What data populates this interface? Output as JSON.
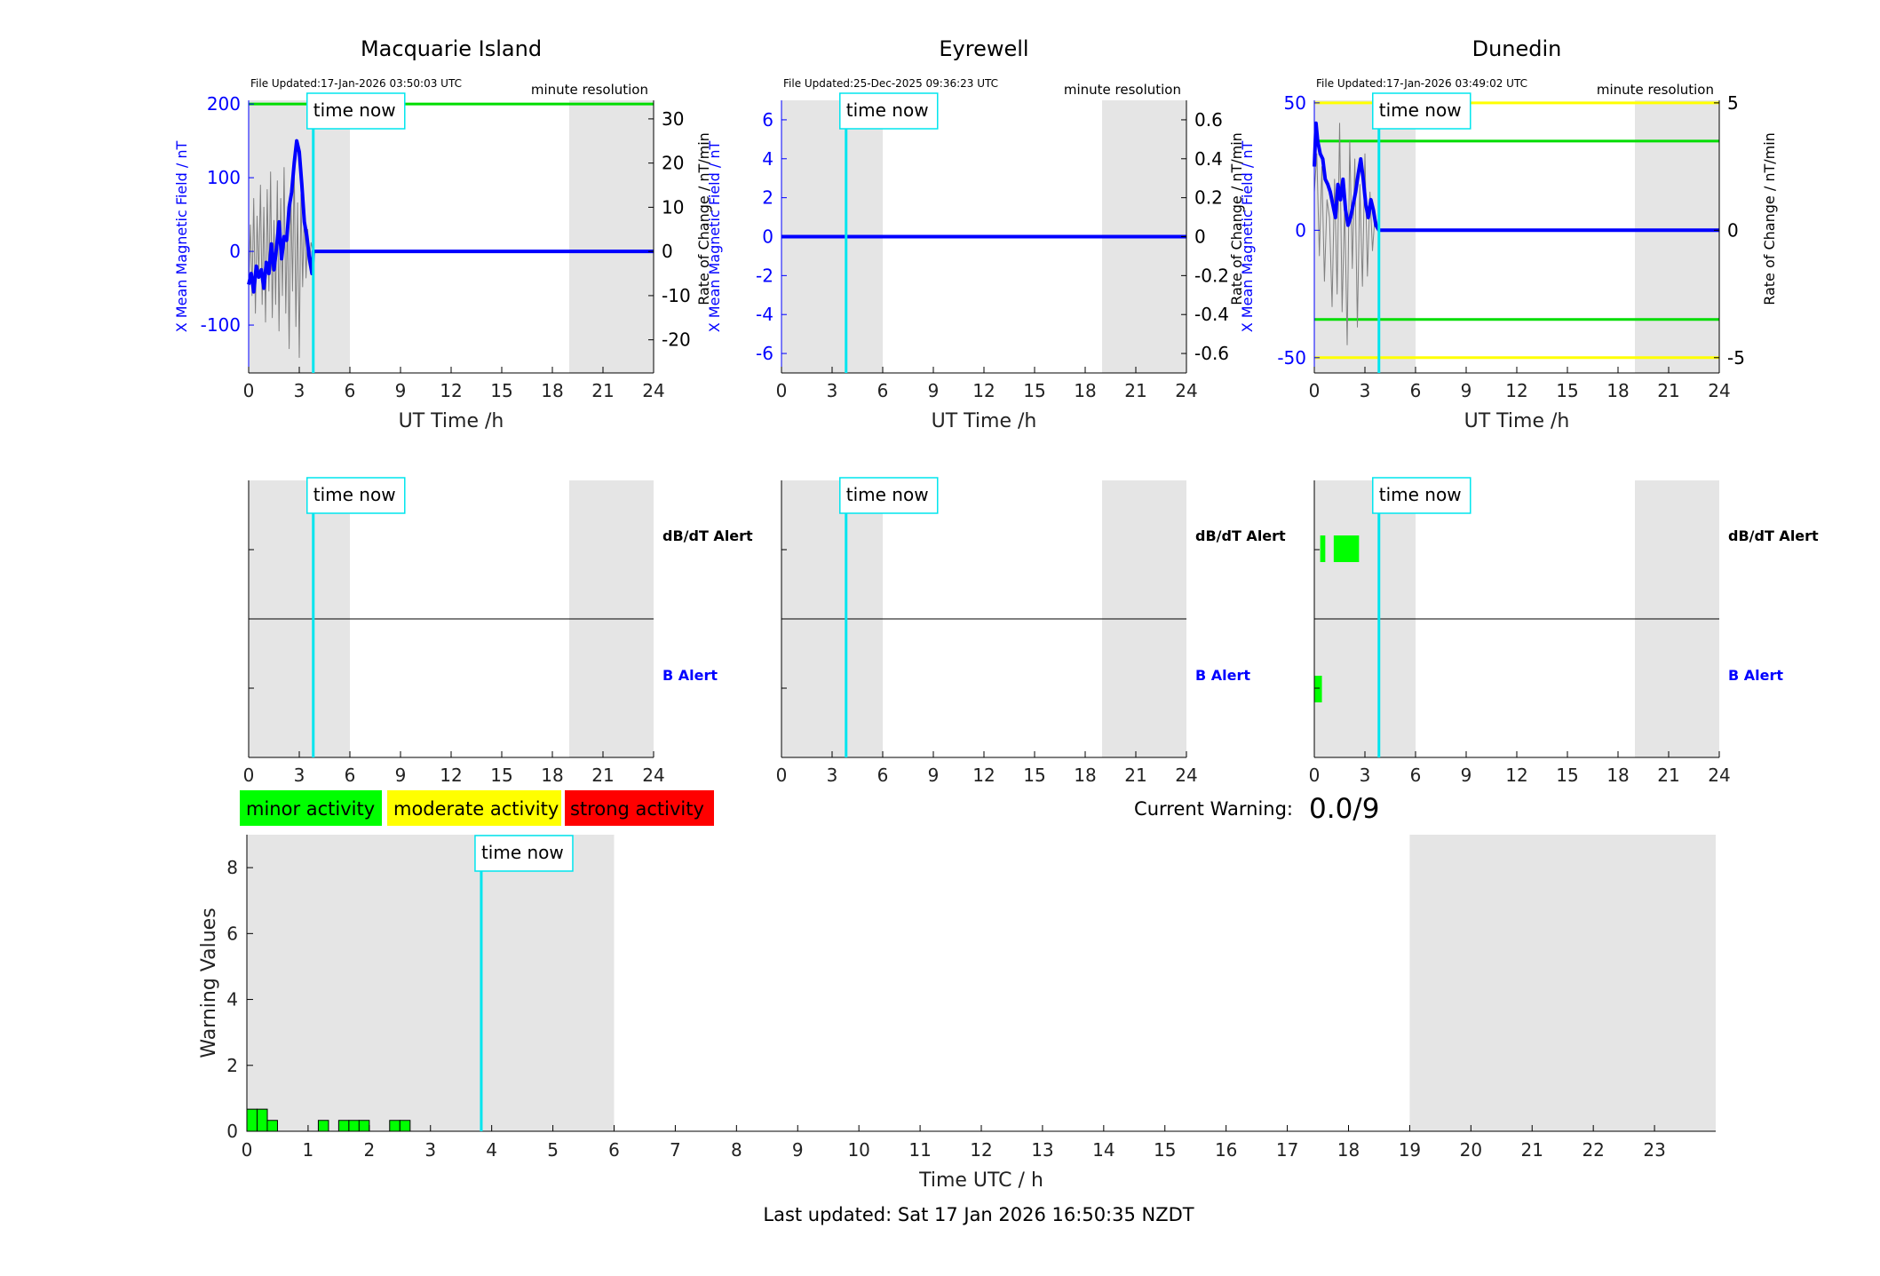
{
  "footer": {
    "last_updated": "Last updated: Sat 17 Jan 2026 16:50:35 NZDT"
  },
  "legend": {
    "minor": "minor activity",
    "moderate": "moderate activity",
    "strong": "strong activity"
  },
  "current_warning": {
    "label": "Current Warning:",
    "value": "0.0/9"
  },
  "common": {
    "time_now_label": "time now",
    "time_now_hours": 3.83,
    "resolution_label": "minute resolution",
    "x_label": "UT Time /h",
    "x_ticks": [
      0,
      3,
      6,
      9,
      12,
      15,
      18,
      21,
      24
    ],
    "y_left_label": "X Mean Magnetic Field / nT",
    "y_right_label": "Rate of Change / nT/min",
    "alert_dbdt_label": "dB/dT Alert",
    "alert_b_label": "B Alert",
    "night_spans_hours": [
      [
        0,
        6
      ],
      [
        19,
        24
      ]
    ]
  },
  "colors": {
    "field": "#0000ff",
    "rate": "#808080",
    "time_now": "#00e5ee",
    "minor": "#00ff00",
    "moderate": "#ffff00",
    "strong": "#ff0000",
    "night": "#e5e5e5"
  },
  "chart_data": [
    {
      "type": "line",
      "station": "Macquarie Island",
      "title": "Macquarie Island",
      "file_updated": "File Updated:17-Jan-2026 03:50:03 UTC",
      "xlim": [
        0,
        24
      ],
      "ylim_left": [
        -165,
        205
      ],
      "yticks_left": [
        -100,
        0,
        100,
        200
      ],
      "ylim_right": [
        -27.5,
        34.2
      ],
      "yticks_right": [
        -20,
        -10,
        0,
        10,
        20,
        30
      ],
      "thresholds_left": [
        {
          "value": 200,
          "color": "#00dd00"
        }
      ],
      "thresholds_right": [],
      "field_x": [
        0,
        0.15,
        0.3,
        0.45,
        0.6,
        0.75,
        0.9,
        1.05,
        1.2,
        1.35,
        1.5,
        1.65,
        1.8,
        1.95,
        2.1,
        2.25,
        2.4,
        2.55,
        2.7,
        2.85,
        3.0,
        3.15,
        3.3,
        3.45,
        3.6,
        3.75,
        3.83,
        24
      ],
      "field_y": [
        -45,
        -30,
        -55,
        -20,
        -35,
        -25,
        -50,
        -15,
        -30,
        10,
        -25,
        5,
        40,
        -10,
        20,
        15,
        60,
        80,
        120,
        150,
        135,
        90,
        40,
        20,
        -10,
        -30,
        0,
        0
      ],
      "rate_x": [
        0,
        0.1,
        0.2,
        0.3,
        0.4,
        0.5,
        0.6,
        0.7,
        0.8,
        0.9,
        1.0,
        1.1,
        1.2,
        1.3,
        1.4,
        1.5,
        1.6,
        1.7,
        1.8,
        1.9,
        2.0,
        2.1,
        2.2,
        2.3,
        2.4,
        2.5,
        2.6,
        2.7,
        2.8,
        2.9,
        3.0,
        3.1,
        3.2,
        3.3,
        3.4,
        3.5,
        3.6,
        3.7,
        3.83,
        24
      ],
      "rate_y": [
        -8,
        6,
        -10,
        12,
        -14,
        8,
        -6,
        15,
        -12,
        10,
        -16,
        14,
        -9,
        18,
        -15,
        7,
        -12,
        16,
        -18,
        12,
        -10,
        19,
        -14,
        8,
        -22,
        14,
        -9,
        20,
        -17,
        11,
        -24,
        13,
        -8,
        10,
        -6,
        5,
        -3,
        2,
        0,
        0
      ],
      "alerts_dbdt": [],
      "alerts_b": []
    },
    {
      "type": "line",
      "station": "Eyrewell",
      "title": "Eyrewell",
      "file_updated": "File Updated:25-Dec-2025 09:36:23 UTC",
      "xlim": [
        0,
        24
      ],
      "ylim_left": [
        -7,
        7
      ],
      "yticks_left": [
        -6,
        -4,
        -2,
        0,
        2,
        4,
        6
      ],
      "ylim_right": [
        -0.7,
        0.7
      ],
      "yticks_right": [
        -0.6,
        -0.4,
        -0.2,
        0,
        0.2,
        0.4,
        0.6
      ],
      "thresholds_left": [],
      "thresholds_right": [],
      "field_x": [
        0,
        24
      ],
      "field_y": [
        0,
        0
      ],
      "rate_x": [
        0,
        24
      ],
      "rate_y": [
        0,
        0
      ],
      "alerts_dbdt": [],
      "alerts_b": []
    },
    {
      "type": "line",
      "station": "Dunedin",
      "title": "Dunedin",
      "file_updated": "File Updated:17-Jan-2026 03:49:02 UTC",
      "xlim": [
        0,
        24
      ],
      "ylim_left": [
        -56,
        51
      ],
      "yticks_left": [
        -50,
        0,
        50
      ],
      "ylim_right": [
        -5.6,
        5.1
      ],
      "yticks_right": [
        -5,
        0,
        5
      ],
      "thresholds_left": [
        {
          "value": 35,
          "color": "#00dd00"
        },
        {
          "value": -35,
          "color": "#00dd00"
        }
      ],
      "thresholds_right": [
        {
          "value": 5,
          "color": "#ffff00"
        },
        {
          "value": -5,
          "color": "#ffff00"
        }
      ],
      "field_x": [
        0,
        0.1,
        0.2,
        0.35,
        0.5,
        0.65,
        0.8,
        0.95,
        1.1,
        1.25,
        1.4,
        1.55,
        1.7,
        1.85,
        2.0,
        2.15,
        2.3,
        2.45,
        2.6,
        2.75,
        2.9,
        3.05,
        3.2,
        3.35,
        3.5,
        3.65,
        3.83,
        24
      ],
      "field_y": [
        25,
        42,
        35,
        30,
        28,
        20,
        18,
        15,
        10,
        5,
        18,
        12,
        20,
        8,
        2,
        5,
        10,
        15,
        22,
        28,
        20,
        10,
        5,
        12,
        8,
        2,
        0,
        0
      ],
      "rate_x": [
        0,
        0.15,
        0.3,
        0.45,
        0.6,
        0.75,
        0.9,
        1.05,
        1.2,
        1.35,
        1.5,
        1.65,
        1.8,
        1.95,
        2.1,
        2.25,
        2.4,
        2.55,
        2.7,
        2.85,
        3.0,
        3.15,
        3.3,
        3.45,
        3.6,
        3.83,
        24
      ],
      "rate_y": [
        1.5,
        3.0,
        -1.0,
        2.5,
        -2.0,
        1.2,
        0.5,
        -3.0,
        2.0,
        -2.5,
        4.2,
        -3.2,
        1.0,
        -4.5,
        3.5,
        -1.5,
        2.8,
        -3.8,
        1.8,
        -2.2,
        3.0,
        -1.8,
        1.5,
        -0.8,
        0.6,
        0,
        0
      ],
      "alerts_dbdt": [
        [
          0.35,
          0.65
        ],
        [
          1.15,
          2.65
        ]
      ],
      "alerts_b": [
        [
          0.0,
          0.45
        ]
      ]
    },
    {
      "type": "bar",
      "title": "",
      "xlabel": "Time UTC / h",
      "ylabel": "Warning Values",
      "xlim": [
        0,
        24
      ],
      "ylim": [
        0,
        9
      ],
      "x_ticks": [
        0,
        1,
        2,
        3,
        4,
        5,
        6,
        7,
        8,
        9,
        10,
        11,
        12,
        13,
        14,
        15,
        16,
        17,
        18,
        19,
        20,
        21,
        22,
        23
      ],
      "y_ticks": [
        0,
        2,
        4,
        6,
        8
      ],
      "bar_width_hours": 0.167,
      "bars": [
        {
          "x": 0.0,
          "value": 0.67
        },
        {
          "x": 0.167,
          "value": 0.67
        },
        {
          "x": 0.333,
          "value": 0.33
        },
        {
          "x": 1.167,
          "value": 0.33
        },
        {
          "x": 1.5,
          "value": 0.33
        },
        {
          "x": 1.667,
          "value": 0.33
        },
        {
          "x": 1.833,
          "value": 0.33
        },
        {
          "x": 2.333,
          "value": 0.33
        },
        {
          "x": 2.5,
          "value": 0.33
        }
      ]
    }
  ]
}
